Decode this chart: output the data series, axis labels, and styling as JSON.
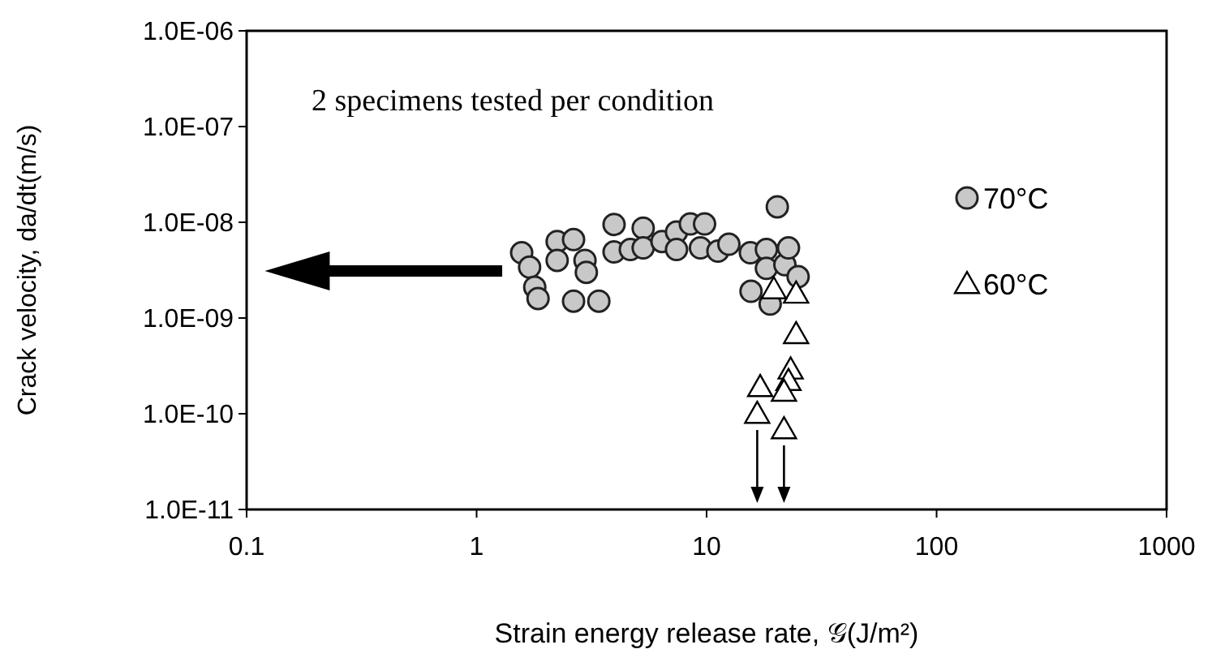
{
  "chart_data": {
    "type": "scatter",
    "xlabel": "Strain energy release rate, 𝒢(J/m²)",
    "ylabel": "Crack velocity, da/dt(m/s)",
    "log": "xy",
    "grid": false,
    "legend": "right",
    "xlim": [
      0.1,
      1000
    ],
    "xticks": [
      0.1,
      1,
      10,
      100,
      1000
    ],
    "ylim": [
      1e-11,
      1e-06
    ],
    "yticks": [
      {
        "value": 1e-11,
        "label": "1.0E-11"
      },
      {
        "value": 1e-10,
        "label": "1.0E-10"
      },
      {
        "value": 1e-09,
        "label": "1.0E-09"
      },
      {
        "value": 1e-08,
        "label": "1.0E-08"
      },
      {
        "value": 1e-07,
        "label": "1.0E-07"
      },
      {
        "value": 1e-06,
        "label": "1.0E-06"
      }
    ],
    "annotations": [
      "2 specimens tested per condition"
    ],
    "series": [
      {
        "name": "70°C",
        "color": "#c8c8c8",
        "marker": "circle",
        "x": [
          1.57,
          1.7,
          1.79,
          1.85,
          2.24,
          2.24,
          2.64,
          2.64,
          2.96,
          3.0,
          3.4,
          3.96,
          3.96,
          4.66,
          5.3,
          5.3,
          6.4,
          7.4,
          7.4,
          8.5,
          9.8,
          9.4,
          11.2,
          12.5,
          15.5,
          15.6,
          18.2,
          18.2,
          18.9,
          20.3,
          21.9,
          22.7,
          25
        ],
        "values": [
          4.8e-09,
          3.4e-09,
          2.1e-09,
          1.6e-09,
          6.3e-09,
          4e-09,
          6.6e-09,
          1.5e-09,
          4e-09,
          3e-09,
          1.5e-09,
          9.5e-09,
          4.9e-09,
          5.2e-09,
          8.7e-09,
          5.4e-09,
          6.3e-09,
          7.9e-09,
          5.2e-09,
          9.6e-09,
          9.6e-09,
          5.4e-09,
          5e-09,
          5.9e-09,
          4.8e-09,
          1.9e-09,
          5.2e-09,
          3.3e-09,
          1.4e-09,
          1.45e-08,
          3.6e-09,
          5.4e-09,
          2.7e-09
        ]
      },
      {
        "name": "60°C",
        "color": "#000000",
        "marker": "triangle",
        "x": [
          24.5,
          24.5,
          23.2,
          22.7,
          21.7,
          17.1,
          16.6,
          21.7,
          19.6
        ],
        "values": [
          1.8e-09,
          6.8e-10,
          2.9e-10,
          2.2e-10,
          1.7e-10,
          1.9e-10,
          1e-10,
          6.9e-11,
          2e-09
        ]
      }
    ]
  }
}
